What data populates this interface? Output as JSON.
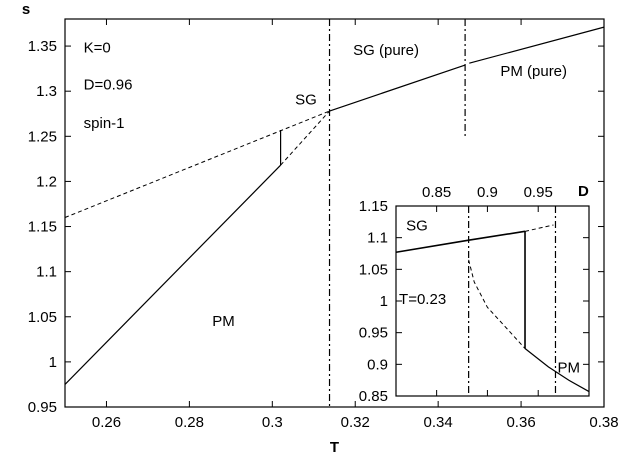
{
  "chart_data": [
    {
      "type": "line",
      "xlabel": "T",
      "ylabel": "s",
      "xlim": [
        0.25,
        0.38
      ],
      "ylim": [
        0.95,
        1.38
      ],
      "xticks": [
        0.26,
        0.28,
        0.3,
        0.32,
        0.34,
        0.36,
        0.38
      ],
      "xtick_labels": [
        "0.26",
        "0.28",
        "0.3",
        "0.32",
        "0.34",
        "0.36",
        "0.38"
      ],
      "yticks": [
        0.95,
        1.0,
        1.05,
        1.1,
        1.15,
        1.2,
        1.25,
        1.3,
        1.35
      ],
      "ytick_labels": [
        "0.95",
        "1",
        "1.05",
        "1.1",
        "1.15",
        "1.2",
        "1.25",
        "1.3",
        "1.35"
      ],
      "series": [
        {
          "style": "solid",
          "points": [
            [
              0.3138,
              1.278
            ],
            [
              0.3465,
              1.329
            ]
          ]
        },
        {
          "style": "solid",
          "points": [
            [
              0.3475,
              1.331
            ],
            [
              0.38,
              1.371
            ]
          ]
        },
        {
          "style": "dashed",
          "points": [
            [
              0.25,
              1.16
            ],
            [
              0.3138,
              1.278
            ]
          ]
        },
        {
          "style": "solid",
          "points": [
            [
              0.25,
              0.975
            ],
            [
              0.302,
              1.218
            ]
          ]
        },
        {
          "style": "dashed",
          "points": [
            [
              0.302,
              1.218
            ],
            [
              0.3138,
              1.278
            ]
          ]
        },
        {
          "style": "solid",
          "points": [
            [
              0.302,
              1.218
            ],
            [
              0.302,
              1.257
            ]
          ]
        }
      ],
      "vlines": [
        {
          "x": 0.3138,
          "style": "dashdot",
          "y": [
            0.95,
            1.38
          ]
        },
        {
          "x": 0.3465,
          "style": "dashdot",
          "y": [
            1.25,
            1.38
          ]
        }
      ],
      "annotations": [
        {
          "text": "K=0",
          "x": 0.2545,
          "y": 1.343
        },
        {
          "text": "D=0.96",
          "x": 0.2545,
          "y": 1.302
        },
        {
          "text": "spin-1",
          "x": 0.2545,
          "y": 1.259
        },
        {
          "text": "SG",
          "x": 0.3055,
          "y": 1.285
        },
        {
          "text": "SG (pure)",
          "x": 0.3195,
          "y": 1.34
        },
        {
          "text": "PM (pure)",
          "x": 0.355,
          "y": 1.317
        },
        {
          "text": "PM",
          "x": 0.2855,
          "y": 1.04
        }
      ]
    },
    {
      "type": "line",
      "inset": true,
      "xlabel": "D",
      "xlim": [
        0.81,
        1.0
      ],
      "ylim": [
        0.85,
        1.15
      ],
      "xticks": [
        0.85,
        0.9,
        0.95
      ],
      "xtick_labels": [
        "0.85",
        "0.9",
        "0.95"
      ],
      "yticks": [
        0.85,
        0.9,
        0.95,
        1.0,
        1.05,
        1.1,
        1.15
      ],
      "ytick_labels": [
        "0.85",
        "0.9",
        "0.95",
        "1",
        "1.05",
        "1.1",
        "1.15"
      ],
      "series": [
        {
          "style": "solid-thick",
          "points": [
            [
              0.81,
              1.077
            ],
            [
              0.8815,
              1.096
            ],
            [
              0.937,
              1.11
            ]
          ]
        },
        {
          "style": "dashed",
          "points": [
            [
              0.937,
              1.11
            ],
            [
              0.965,
              1.12
            ]
          ]
        },
        {
          "style": "solid-thick",
          "points": [
            [
              0.937,
              0.925
            ],
            [
              0.937,
              1.11
            ]
          ]
        },
        {
          "style": "dashed",
          "points": [
            [
              0.8815,
              1.065
            ],
            [
              0.887,
              1.03
            ],
            [
              0.9,
              0.99
            ],
            [
              0.92,
              0.955
            ],
            [
              0.937,
              0.925
            ]
          ]
        },
        {
          "style": "solid",
          "points": [
            [
              0.937,
              0.925
            ],
            [
              0.96,
              0.896
            ],
            [
              0.98,
              0.875
            ],
            [
              1.0,
              0.857
            ]
          ]
        }
      ],
      "vlines": [
        {
          "x": 0.8815,
          "style": "dashdot"
        },
        {
          "x": 0.967,
          "style": "dashdot"
        }
      ],
      "annotations": [
        {
          "text": "SG",
          "x": 0.82,
          "y": 1.111
        },
        {
          "text": "T=0.23",
          "x": 0.813,
          "y": 0.995
        },
        {
          "text": "PM",
          "x": 0.969,
          "y": 0.887
        }
      ]
    }
  ]
}
